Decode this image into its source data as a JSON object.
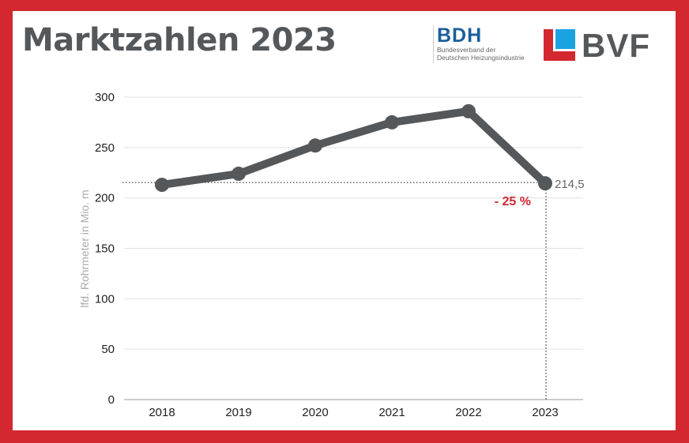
{
  "header": {
    "title": "Marktzahlen 2023"
  },
  "logos": {
    "bdh": {
      "name": "BDH",
      "subtitle_line1": "Bundesverband der",
      "subtitle_line2": "Deutschen Heizungsindustrie",
      "color": "#1a5e9c"
    },
    "bvf": {
      "name": "BVF",
      "red": "#d3282f",
      "blue": "#1aa3e0"
    }
  },
  "chart_data": {
    "type": "line",
    "title": "",
    "xlabel": "",
    "ylabel": "lfd. Rohrmeter in Mio. m",
    "x": [
      "2018",
      "2019",
      "2020",
      "2021",
      "2022",
      "2023"
    ],
    "series": [
      {
        "values": [
          213,
          224,
          252,
          275,
          286,
          214.5
        ],
        "color": "#55585b"
      }
    ],
    "ylim": [
      0,
      300
    ],
    "yticks": [
      0,
      50,
      100,
      150,
      200,
      250,
      300
    ],
    "grid": true,
    "annotations": [
      {
        "x": "2023",
        "value_label": "214,5"
      },
      {
        "x": "2023",
        "text": "- 25 %",
        "color": "#d3282f"
      }
    ]
  },
  "colors": {
    "frame": "#d3282f",
    "line": "#55585b",
    "grid": "#e0e0e0"
  }
}
